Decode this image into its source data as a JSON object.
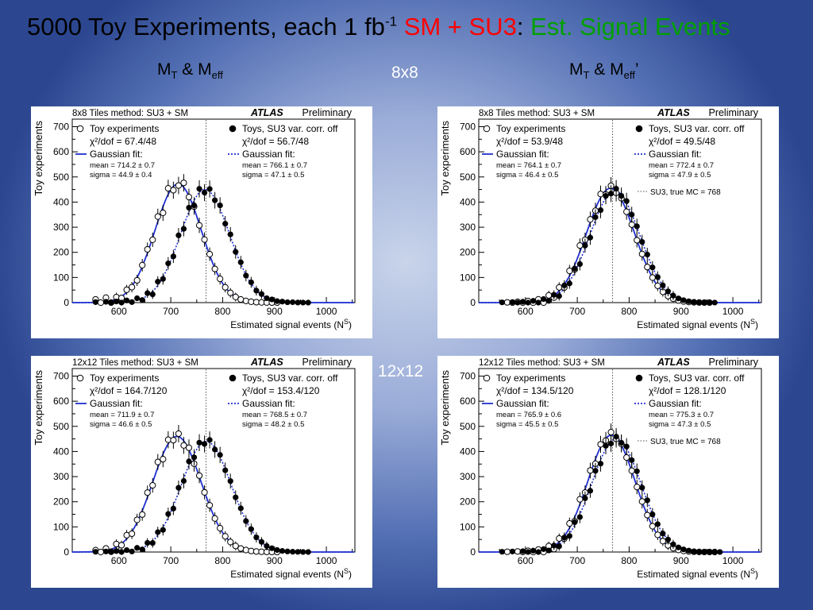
{
  "slide": {
    "title_prefix": "5000 Toy Experiments, each 1 fb",
    "title_sup": "-1",
    "title_sm": "SM + SU3",
    "title_colon": ":",
    "title_green": "Est. Signal Events",
    "left_header": {
      "a": "M",
      "a_sub": "T",
      "amp": " & M",
      "b_sub": "eff",
      "prime": ""
    },
    "right_header": {
      "a": "M",
      "a_sub": "T",
      "amp": " & M",
      "b_sub": "eff",
      "prime": "’"
    },
    "row_labels": [
      "8x8",
      "12x12"
    ]
  },
  "chart_data": [
    {
      "type": "scatter",
      "title": "8x8 Tiles method: SU3 + SM",
      "atlas": "ATLAS",
      "atlas_note": "Preliminary",
      "xlabel": "Estimated signal events (N",
      "xlabel_sup": "S",
      "ylabel": "Toy experiments",
      "xlim": [
        510,
        1055
      ],
      "ylim": [
        0,
        730
      ],
      "xticks": [
        600,
        700,
        800,
        900,
        1000
      ],
      "yticks": [
        0,
        100,
        200,
        300,
        400,
        500,
        600,
        700
      ],
      "ref_line": 768,
      "ref_label": "",
      "legend_left": {
        "marker": "Toy experiments",
        "chi": "χ²/dof = 67.4/48",
        "fit": "Gaussian fit:",
        "mean": "mean  = 714.2 ± 0.7",
        "sigma": "sigma = 44.9 ± 0.4"
      },
      "legend_right": {
        "marker": "Toys, SU3 var. corr. off",
        "chi": "χ²/dof = 56.7/48",
        "fit": "Gaussian fit:",
        "mean": "mean  = 766.1 ± 0.7",
        "sigma": "sigma = 47.1 ± 0.5"
      },
      "series": [
        {
          "name": "Toy experiments",
          "style": "open",
          "fit": {
            "mean": 714.2,
            "sigma": 44.9,
            "peak": 472
          },
          "jitter": [
            12,
            -9,
            16,
            -14,
            8,
            -6,
            10,
            -4,
            -11,
            5,
            14,
            -9,
            20,
            -25,
            24,
            -15,
            -6,
            18,
            -4,
            9,
            -5,
            2,
            4,
            -2,
            1,
            0,
            1,
            0,
            0,
            0,
            0,
            0,
            0,
            0,
            0,
            0,
            0,
            0,
            0,
            0,
            0,
            0,
            0,
            0,
            0,
            0,
            0,
            0,
            0,
            0,
            0,
            0
          ]
        },
        {
          "name": "Toys, SU3 var. corr. off",
          "style": "filled",
          "fit": {
            "mean": 766.1,
            "sigma": 47.1,
            "peak": 450
          },
          "jitter": [
            2,
            -1,
            3,
            -2,
            4,
            -5,
            6,
            -3,
            8,
            -6,
            10,
            -12,
            14,
            -8,
            12,
            -10,
            18,
            -14,
            16,
            -20,
            15,
            -12,
            10,
            -8,
            14,
            -6,
            9,
            -4,
            6,
            -3,
            5,
            -2,
            3,
            -1,
            2,
            0,
            1,
            0,
            1,
            0,
            0,
            0,
            0,
            0,
            0,
            0,
            0,
            0,
            0,
            0,
            0,
            0
          ]
        }
      ]
    },
    {
      "type": "scatter",
      "title": "8x8 Tiles method: SU3 + SM",
      "atlas": "ATLAS",
      "atlas_note": "Preliminary",
      "xlabel": "Estimated signal events (N",
      "xlabel_sup": "S",
      "ylabel": "Toy experiments",
      "xlim": [
        510,
        1055
      ],
      "ylim": [
        0,
        730
      ],
      "xticks": [
        600,
        700,
        800,
        900,
        1000
      ],
      "yticks": [
        0,
        100,
        200,
        300,
        400,
        500,
        600,
        700
      ],
      "ref_line": 768,
      "ref_label": "SU3, true MC = 768",
      "legend_left": {
        "marker": "Toy experiments",
        "chi": "χ²/dof = 53.9/48",
        "fit": "Gaussian fit:",
        "mean": "mean  = 764.1 ± 0.7",
        "sigma": "sigma = 46.4 ± 0.5"
      },
      "legend_right": {
        "marker": "Toys, SU3 var. corr. off",
        "chi": "χ²/dof = 49.5/48",
        "fit": "Gaussian fit:",
        "mean": "mean  = 772.4 ± 0.7",
        "sigma": "sigma = 47.9 ± 0.5"
      },
      "series": [
        {
          "name": "Toy experiments",
          "style": "open",
          "fit": {
            "mean": 764.1,
            "sigma": 46.4,
            "peak": 455
          },
          "jitter": [
            0,
            1,
            -2,
            3,
            -4,
            5,
            -6,
            8,
            -10,
            12,
            -9,
            14,
            -12,
            20,
            -18,
            25,
            -10,
            12,
            -8,
            14,
            -16,
            10,
            -6,
            4,
            -3,
            2,
            -1,
            1,
            0,
            0,
            0,
            0,
            0,
            0,
            0,
            0,
            0,
            0,
            0,
            0,
            0,
            0,
            0,
            0,
            0,
            0,
            0,
            0,
            0,
            0,
            0,
            0
          ]
        },
        {
          "name": "Toys, SU3 var. corr. off",
          "style": "filled",
          "fit": {
            "mean": 772.4,
            "sigma": 47.9,
            "peak": 445
          },
          "jitter": [
            1,
            -1,
            2,
            -2,
            3,
            -3,
            5,
            -4,
            7,
            -6,
            9,
            -10,
            12,
            -8,
            15,
            -12,
            10,
            -14,
            12,
            -10,
            8,
            -6,
            9,
            -5,
            6,
            -3,
            4,
            -2,
            2,
            -1,
            1,
            0,
            0,
            0,
            0,
            0,
            0,
            0,
            0,
            0,
            0,
            0,
            0,
            0,
            0,
            0,
            0,
            0,
            0,
            0,
            0,
            0
          ]
        }
      ]
    },
    {
      "type": "scatter",
      "title": "12x12 Tiles method: SU3 + SM",
      "atlas": "ATLAS",
      "atlas_note": "Preliminary",
      "xlabel": "Estimated signal events (N",
      "xlabel_sup": "S",
      "ylabel": "Toy experiments",
      "xlim": [
        510,
        1055
      ],
      "ylim": [
        0,
        730
      ],
      "xticks": [
        600,
        700,
        800,
        900,
        1000
      ],
      "yticks": [
        0,
        100,
        200,
        300,
        400,
        500,
        600,
        700
      ],
      "ref_line": 768,
      "ref_label": "",
      "legend_left": {
        "marker": "Toy experiments",
        "chi": "χ²/dof = 164.7/120",
        "fit": "Gaussian fit:",
        "mean": "mean  = 711.9 ± 0.7",
        "sigma": "sigma = 46.6 ± 0.5"
      },
      "legend_right": {
        "marker": "Toys, SU3 var. corr. off",
        "chi": "χ²/dof = 153.4/120",
        "fit": "Gaussian fit:",
        "mean": "mean  = 768.5 ± 0.7",
        "sigma": "sigma = 48.2 ± 0.5"
      },
      "series": [
        {
          "name": "Toy experiments",
          "style": "open",
          "fit": {
            "mean": 711.9,
            "sigma": 46.6,
            "peak": 460
          },
          "jitter": [
            6,
            -4,
            8,
            -10,
            12,
            -6,
            14,
            -8,
            10,
            -15,
            18,
            -12,
            22,
            -20,
            16,
            -10,
            12,
            -18,
            8,
            -6,
            4,
            -3,
            2,
            -1,
            1,
            0,
            0,
            0,
            0,
            0,
            0,
            0,
            0,
            0,
            0,
            0,
            0,
            0,
            0,
            0,
            0,
            0,
            0,
            0,
            0,
            0,
            0,
            0,
            0,
            0,
            0,
            0
          ]
        },
        {
          "name": "Toys, SU3 var. corr. off",
          "style": "filled",
          "fit": {
            "mean": 768.5,
            "sigma": 48.2,
            "peak": 440
          },
          "jitter": [
            1,
            -1,
            2,
            -2,
            3,
            -4,
            5,
            -3,
            7,
            -6,
            9,
            -8,
            12,
            -10,
            14,
            -12,
            18,
            -10,
            15,
            -14,
            12,
            -9,
            10,
            -7,
            8,
            -5,
            6,
            -4,
            4,
            -2,
            3,
            -1,
            2,
            0,
            1,
            0,
            0,
            0,
            0,
            0,
            0,
            0,
            0,
            0,
            0,
            0,
            0,
            0,
            0,
            0,
            0,
            0
          ]
        }
      ]
    },
    {
      "type": "scatter",
      "title": "12x12 Tiles method: SU3 + SM",
      "atlas": "ATLAS",
      "atlas_note": "Preliminary",
      "xlabel": "Estimated signal events (N",
      "xlabel_sup": "S",
      "ylabel": "Toy experiments",
      "xlim": [
        510,
        1055
      ],
      "ylim": [
        0,
        730
      ],
      "xticks": [
        600,
        700,
        800,
        900,
        1000
      ],
      "yticks": [
        0,
        100,
        200,
        300,
        400,
        500,
        600,
        700
      ],
      "ref_line": 768,
      "ref_label": "SU3, true MC = 768",
      "legend_left": {
        "marker": "Toy experiments",
        "chi": "χ²/dof = 134.5/120",
        "fit": "Gaussian fit:",
        "mean": "mean  = 765.9 ± 0.6",
        "sigma": "sigma = 45.5 ± 0.5"
      },
      "legend_right": {
        "marker": "Toys, SU3 var. corr. off",
        "chi": "χ²/dof = 128.1/120",
        "fit": "Gaussian fit:",
        "mean": "mean  = 775.3 ± 0.7",
        "sigma": "sigma = 47.3 ± 0.5"
      },
      "series": [
        {
          "name": "Toy experiments",
          "style": "open",
          "fit": {
            "mean": 765.9,
            "sigma": 45.5,
            "peak": 465
          },
          "jitter": [
            0,
            1,
            -1,
            2,
            -3,
            4,
            -5,
            6,
            -8,
            10,
            -12,
            14,
            -10,
            18,
            -15,
            20,
            -12,
            14,
            -18,
            10,
            -8,
            12,
            -6,
            4,
            -3,
            2,
            -1,
            1,
            0,
            0,
            0,
            0,
            0,
            0,
            0,
            0,
            0,
            0,
            0,
            0,
            0,
            0,
            0,
            0,
            0,
            0,
            0,
            0,
            0,
            0,
            0,
            0
          ]
        },
        {
          "name": "Toys, SU3 var. corr. off",
          "style": "filled",
          "fit": {
            "mean": 775.3,
            "sigma": 47.3,
            "peak": 450
          },
          "jitter": [
            1,
            -1,
            2,
            -2,
            3,
            -3,
            4,
            -5,
            6,
            -4,
            8,
            -7,
            10,
            -9,
            12,
            -10,
            14,
            -12,
            10,
            -15,
            12,
            -8,
            9,
            -6,
            7,
            -4,
            5,
            -3,
            3,
            -2,
            2,
            -1,
            1,
            0,
            0,
            0,
            0,
            0,
            0,
            0,
            0,
            0,
            0,
            0,
            0,
            0,
            0,
            0,
            0,
            0
          ]
        }
      ]
    }
  ],
  "colors": {
    "fit_line": "#1f2fd0",
    "marker": "#000000",
    "ref_line": "#555555"
  }
}
